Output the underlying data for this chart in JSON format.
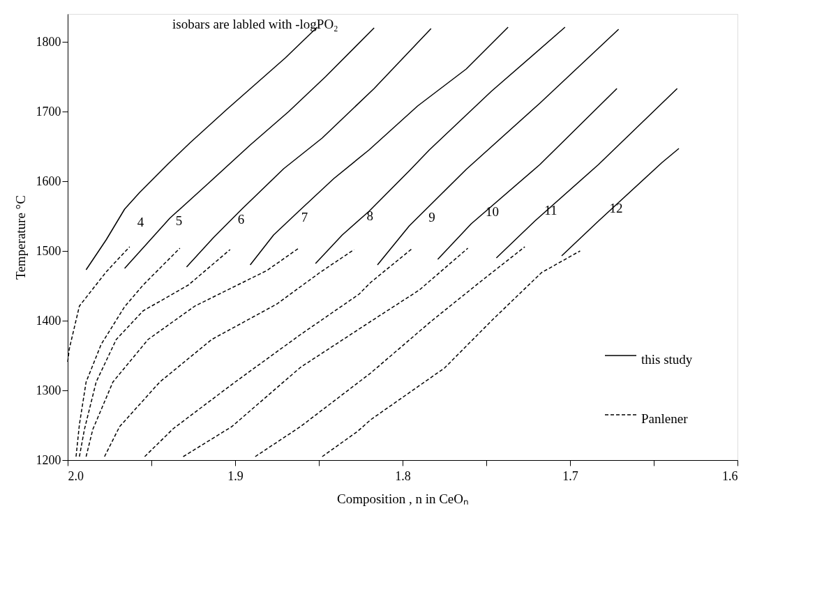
{
  "chart_data": {
    "type": "line",
    "xlabel": "Composition , n in CeOₙ",
    "ylabel": "Temperature °C",
    "xlim": [
      2.0,
      1.6
    ],
    "ylim": [
      1200,
      1840
    ],
    "xticks": [
      {
        "value": 2.0,
        "label": "2.0"
      },
      {
        "value": 1.95,
        "label": null
      },
      1.9,
      {
        "value": 1.85,
        "label": null
      },
      1.8,
      {
        "value": 1.75,
        "label": null
      },
      1.7,
      {
        "value": 1.65,
        "label": null
      },
      1.6
    ],
    "yticks": [
      1200,
      1300,
      1400,
      1500,
      1600,
      1700,
      1800
    ],
    "grid": false,
    "legend": "bottom right",
    "marker": "none",
    "series": [
      {
        "name": "this study",
        "color": "#000000",
        "line_style": "solid",
        "x": [
          1.989,
          1.977,
          1.966,
          1.957,
          1.94,
          1.927,
          1.905,
          1.87,
          1.851
        ],
        "values": [
          1473,
          1516,
          1560,
          1584,
          1625,
          1655,
          1703,
          1777,
          1821
        ]
      },
      {
        "color": "#000000",
        "line_style": "solid",
        "x": [
          1.966,
          1.939,
          1.916,
          1.891,
          1.868,
          1.846,
          1.817
        ],
        "values": [
          1475,
          1547,
          1597,
          1652,
          1700,
          1750,
          1820
        ]
      },
      {
        "color": "#000000",
        "line_style": "solid",
        "x": [
          1.929,
          1.913,
          1.896,
          1.871,
          1.848,
          1.817,
          1.783
        ],
        "values": [
          1477,
          1519,
          1560,
          1618,
          1662,
          1733,
          1819
        ]
      },
      {
        "color": "#000000",
        "line_style": "solid",
        "x": [
          1.891,
          1.877,
          1.862,
          1.841,
          1.82,
          1.791,
          1.762,
          1.737
        ],
        "values": [
          1480,
          1523,
          1557,
          1604,
          1645,
          1708,
          1761,
          1821
        ]
      },
      {
        "color": "#000000",
        "line_style": "solid",
        "x": [
          1.852,
          1.836,
          1.82,
          1.796,
          1.784,
          1.747,
          1.703
        ],
        "values": [
          1482,
          1523,
          1557,
          1615,
          1645,
          1729,
          1821
        ]
      },
      {
        "color": "#000000",
        "line_style": "solid",
        "x": [
          1.815,
          1.796,
          1.762,
          1.718,
          1.671
        ],
        "values": [
          1480,
          1536,
          1617,
          1712,
          1818
        ]
      },
      {
        "color": "#000000",
        "line_style": "solid",
        "x": [
          1.779,
          1.759,
          1.718,
          1.672
        ],
        "values": [
          1488,
          1539,
          1624,
          1733
        ]
      },
      {
        "color": "#000000",
        "line_style": "solid",
        "x": [
          1.744,
          1.721,
          1.683,
          1.636
        ],
        "values": [
          1490,
          1543,
          1624,
          1733
        ]
      },
      {
        "color": "#000000",
        "line_style": "solid",
        "x": [
          1.705,
          1.683,
          1.645,
          1.635
        ],
        "values": [
          1493,
          1543,
          1627,
          1647
        ]
      },
      {
        "name": "Panlener",
        "color": "#000000",
        "line_style": "dashed",
        "x": [
          2.0,
          1.999,
          1.993,
          1.977,
          1.963
        ],
        "values": [
          1341,
          1360,
          1421,
          1470,
          1506
        ]
      },
      {
        "color": "#000000",
        "line_style": "dashed",
        "x": [
          1.995,
          1.993,
          1.989,
          1.98,
          1.966,
          1.955,
          1.933
        ],
        "values": [
          1205,
          1251,
          1312,
          1366,
          1420,
          1451,
          1504
        ]
      },
      {
        "color": "#000000",
        "line_style": "dashed",
        "x": [
          1.993,
          1.99,
          1.983,
          1.971,
          1.955,
          1.928,
          1.903
        ],
        "values": [
          1205,
          1244,
          1312,
          1373,
          1414,
          1451,
          1502
        ]
      },
      {
        "color": "#000000",
        "line_style": "dashed",
        "x": [
          1.989,
          1.985,
          1.973,
          1.952,
          1.924,
          1.881,
          1.862
        ],
        "values": [
          1205,
          1244,
          1312,
          1373,
          1421,
          1472,
          1504
        ]
      },
      {
        "color": "#000000",
        "line_style": "dashed",
        "x": [
          1.978,
          1.969,
          1.945,
          1.914,
          1.875,
          1.85,
          1.829
        ],
        "values": [
          1205,
          1248,
          1312,
          1373,
          1424,
          1468,
          1502
        ]
      },
      {
        "color": "#000000",
        "line_style": "dashed",
        "x": [
          1.954,
          1.937,
          1.9,
          1.861,
          1.826,
          1.819,
          1.794
        ],
        "values": [
          1205,
          1245,
          1312,
          1380,
          1438,
          1455,
          1504
        ]
      },
      {
        "color": "#000000",
        "line_style": "dashed",
        "x": [
          1.931,
          1.902,
          1.861,
          1.819,
          1.79,
          1.761
        ],
        "values": [
          1205,
          1248,
          1333,
          1399,
          1444,
          1504
        ]
      },
      {
        "color": "#000000",
        "line_style": "dashed",
        "x": [
          1.888,
          1.861,
          1.819,
          1.783,
          1.754,
          1.727
        ],
        "values": [
          1205,
          1248,
          1325,
          1399,
          1455,
          1506
        ]
      },
      {
        "color": "#000000",
        "line_style": "dashed",
        "x": [
          1.848,
          1.827,
          1.819,
          1.775,
          1.746,
          1.717,
          1.694
        ],
        "values": [
          1205,
          1241,
          1258,
          1332,
          1402,
          1469,
          1500
        ]
      }
    ],
    "annotations": [
      "isobars are labled with -logPO₂",
      "4",
      "5",
      "6",
      "7",
      "8",
      "9",
      "10",
      "11",
      "12"
    ]
  }
}
